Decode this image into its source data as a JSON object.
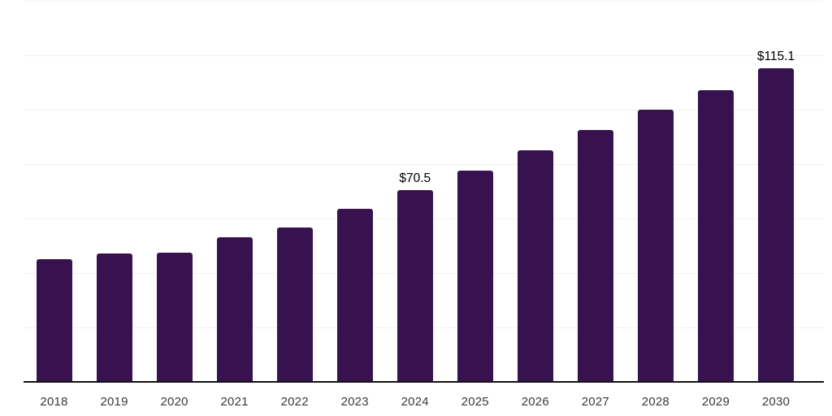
{
  "chart_data": {
    "type": "bar",
    "title": "",
    "xlabel": "",
    "ylabel": "",
    "categories": [
      "2018",
      "2019",
      "2020",
      "2021",
      "2022",
      "2023",
      "2024",
      "2025",
      "2026",
      "2027",
      "2028",
      "2029",
      "2030"
    ],
    "values": [
      45.0,
      47.2,
      47.6,
      53.2,
      56.8,
      63.7,
      70.5,
      77.7,
      85.1,
      92.6,
      100.0,
      107.3,
      115.1
    ],
    "value_labels": [
      null,
      null,
      null,
      null,
      null,
      null,
      "$70.5",
      null,
      null,
      null,
      null,
      null,
      "$115.1"
    ],
    "ylim": [
      0,
      140
    ],
    "gridline_step": 20,
    "grid": true,
    "y_tick_labels_visible": false,
    "legend_position": "none",
    "colors": {
      "bar": "#38124F",
      "axis_line": "#111111",
      "gridline": "#F1F1F3",
      "tick_label": "#3A3A3A",
      "value_label": "#000000",
      "background": "#FFFFFF"
    }
  }
}
